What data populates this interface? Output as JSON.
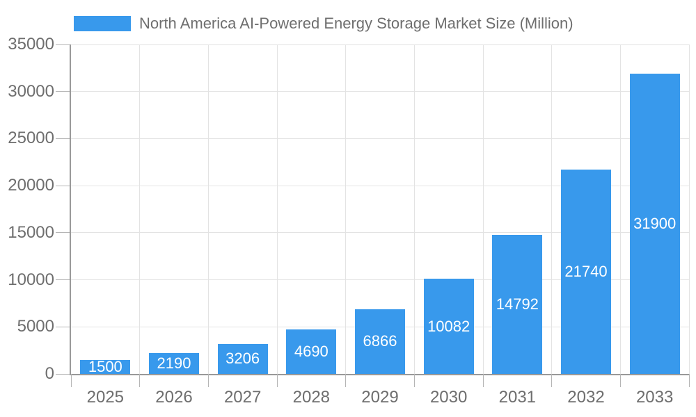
{
  "legend": {
    "label": "North America AI-Powered Energy Storage Market Size (Million)",
    "swatch_color": "#3899EC"
  },
  "chart_data": {
    "type": "bar",
    "title": "North America AI-Powered Energy Storage Market Size (Million)",
    "categories": [
      "2025",
      "2026",
      "2027",
      "2028",
      "2029",
      "2030",
      "2031",
      "2032",
      "2033"
    ],
    "values": [
      1500,
      2190,
      3206,
      4690,
      6866,
      10082,
      14792,
      21740,
      31900
    ],
    "series": [
      {
        "name": "North America AI-Powered Energy Storage Market Size (Million)",
        "values": [
          1500,
          2190,
          3206,
          4690,
          6866,
          10082,
          14792,
          21740,
          31900
        ]
      }
    ],
    "xlabel": "",
    "ylabel": "",
    "ylim": [
      0,
      35000
    ],
    "ytick_step": 5000,
    "ytick_labels": [
      "0",
      "5000",
      "10000",
      "15000",
      "20000",
      "25000",
      "30000",
      "35000"
    ],
    "grid": true,
    "legend_position": "top",
    "value_label_position": "inside-center",
    "colors": {
      "bar": "#3899EC",
      "gridline": "#e3e3e3",
      "axis_line": "#999999",
      "tick": "#b5b5b5",
      "axis_text": "#6e6e6e",
      "value_text": "#ffffff",
      "background": "#ffffff"
    }
  }
}
